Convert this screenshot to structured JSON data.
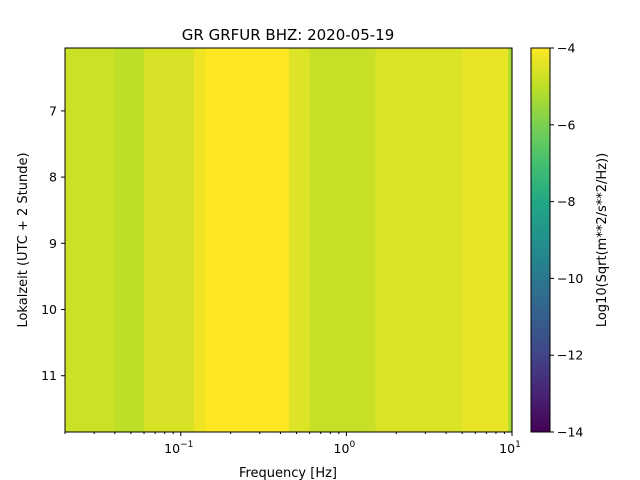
{
  "chart_data": {
    "type": "heatmap",
    "title": "GR GRFUR  BHZ: 2020-05-19",
    "xlabel": "Frequency [Hz]",
    "ylabel": "Lokalzeit (UTC + 2 Stunde)",
    "x_scale": "log",
    "xlim": [
      0.02,
      10
    ],
    "ylim": [
      11.85,
      6.05
    ],
    "y_inverted": true,
    "x_ticks": [
      {
        "value": 0.1,
        "base": "10",
        "exp": "−1"
      },
      {
        "value": 1,
        "base": "10",
        "exp": "0"
      },
      {
        "value": 10,
        "base": "10",
        "exp": "1"
      }
    ],
    "y_ticks": [
      {
        "value": 7,
        "label": "7"
      },
      {
        "value": 8,
        "label": "8"
      },
      {
        "value": 9,
        "label": "9"
      },
      {
        "value": 10,
        "label": "10"
      },
      {
        "value": 11,
        "label": "11"
      }
    ],
    "colorbar": {
      "label": "Log10(Sqrt(m**2/s**2/Hz))",
      "colormap": "viridis",
      "range": [
        -14,
        -4
      ],
      "ticks": [
        {
          "value": -4,
          "label": "−4"
        },
        {
          "value": -6,
          "label": "−6"
        },
        {
          "value": -8,
          "label": "−8"
        },
        {
          "value": -10,
          "label": "−10"
        },
        {
          "value": -12,
          "label": "−12"
        },
        {
          "value": -14,
          "label": "−14"
        }
      ]
    },
    "frequency_bands": [
      {
        "f_min": 0.02,
        "f_max": 0.04,
        "value": -4.8
      },
      {
        "f_min": 0.04,
        "f_max": 0.06,
        "value": -5.0
      },
      {
        "f_min": 0.06,
        "f_max": 0.12,
        "value": -4.6
      },
      {
        "f_min": 0.12,
        "f_max": 0.14,
        "value": -4.2
      },
      {
        "f_min": 0.14,
        "f_max": 0.45,
        "value": -4.0
      },
      {
        "f_min": 0.45,
        "f_max": 0.6,
        "value": -4.5
      },
      {
        "f_min": 0.6,
        "f_max": 1.5,
        "value": -4.85
      },
      {
        "f_min": 1.5,
        "f_max": 5.0,
        "value": -4.55
      },
      {
        "f_min": 5.0,
        "f_max": 9.5,
        "value": -4.35
      },
      {
        "f_min": 9.5,
        "f_max": 10.0,
        "value": -5.3
      }
    ]
  }
}
